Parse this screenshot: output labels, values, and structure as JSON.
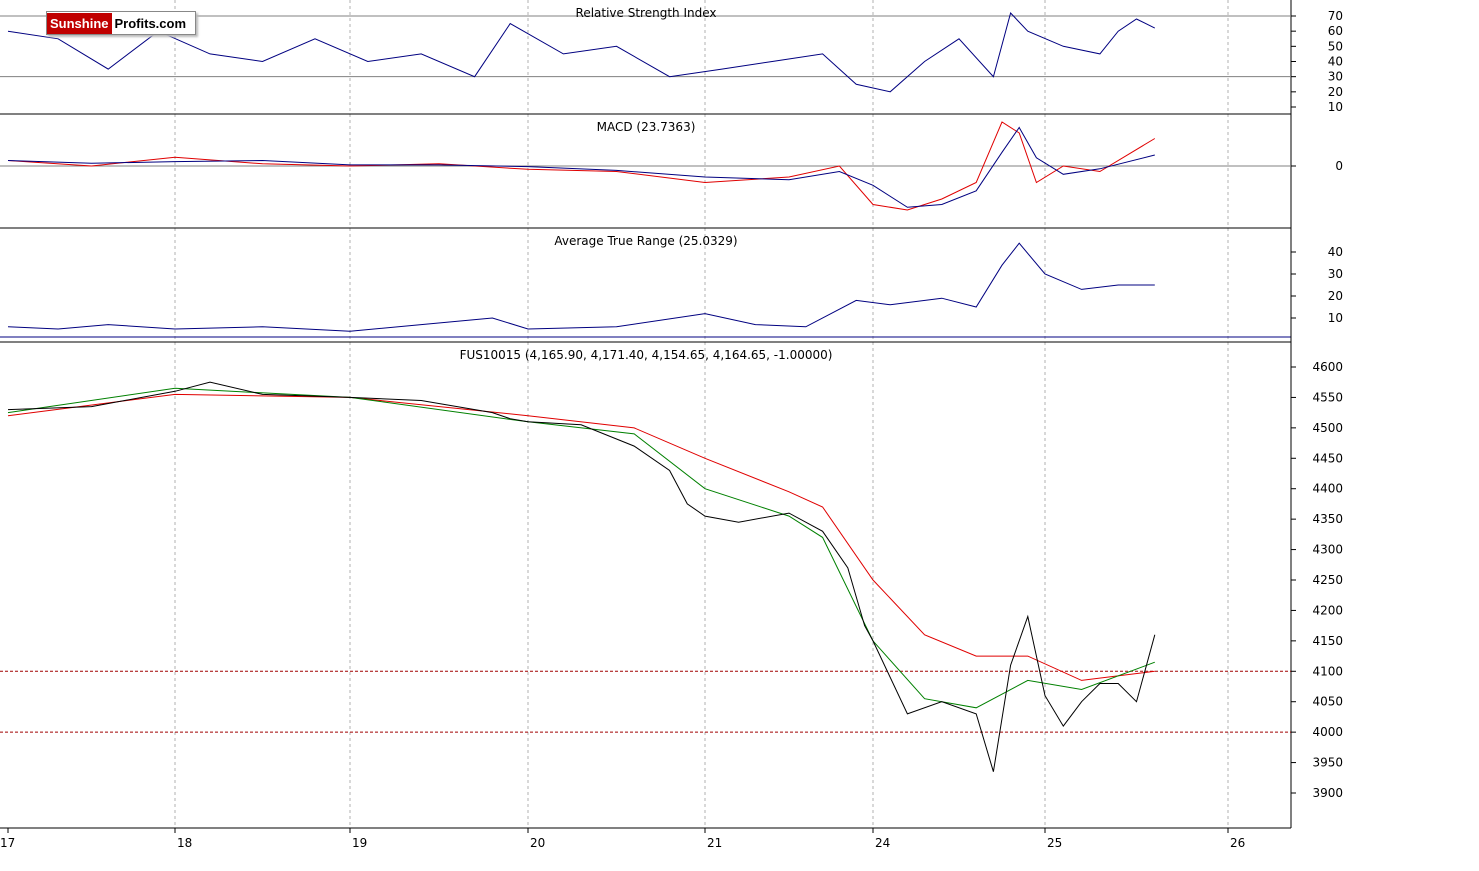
{
  "logo": {
    "part1": "Sunshine",
    "part2": "Profits.com"
  },
  "colors": {
    "price": "#000000",
    "ma_short": "#008000",
    "ma_long": "#e00000",
    "indicator": "#000080",
    "hline": "#808080",
    "support": "#a00000",
    "grid": "#b0b0b0"
  },
  "panels": {
    "rsi": {
      "title": "Relative Strength Index",
      "ticks": [
        70,
        60,
        50,
        40,
        30,
        20,
        10
      ],
      "levels": [
        70,
        30
      ]
    },
    "macd": {
      "title": "MACD (23.7363)",
      "ticks": [
        "0"
      ]
    },
    "atr": {
      "title": "Average True Range (25.0329)",
      "ticks": [
        40,
        30,
        20,
        10
      ]
    },
    "price": {
      "title": "FUS10015 (4,165.90, 4,171.40, 4,154.65, 4,164.65, -1.00000)",
      "ticks": [
        4600,
        4550,
        4500,
        4450,
        4400,
        4350,
        4300,
        4250,
        4200,
        4150,
        4100,
        4050,
        4000,
        3950,
        3900
      ],
      "support_levels": [
        4100,
        4000
      ]
    }
  },
  "x_axis": {
    "labels": [
      "17",
      "18",
      "19",
      "20",
      "21",
      "24",
      "25",
      "26"
    ]
  },
  "chart_data": {
    "type": "line",
    "x_unit": "trading session (date labels on axis)",
    "price_series": {
      "name": "FUS10015",
      "x": [
        17.0,
        17.5,
        18.0,
        18.2,
        18.5,
        19.0,
        19.4,
        19.8,
        19.9,
        20.0,
        20.3,
        20.6,
        20.8,
        20.9,
        21.0,
        21.2,
        21.5,
        21.7,
        21.85,
        21.95,
        22.0,
        22.2,
        22.4,
        22.6,
        22.7,
        22.8,
        22.9,
        23.0,
        23.1,
        23.2,
        23.3,
        23.4,
        23.5,
        23.6
      ],
      "y": [
        4530,
        4535,
        4560,
        4575,
        4555,
        4550,
        4545,
        4525,
        4515,
        4510,
        4505,
        4470,
        4430,
        4375,
        4355,
        4345,
        4360,
        4330,
        4270,
        4175,
        4150,
        4030,
        4050,
        4030,
        3935,
        4110,
        4190,
        4060,
        4010,
        4050,
        4080,
        4080,
        4050,
        4160
      ],
      "last": {
        "open": 4165.9,
        "high": 4171.4,
        "low": 4154.65,
        "close": 4164.65,
        "change": -1.0
      }
    },
    "ma_short": {
      "x": [
        17.0,
        18.0,
        19.0,
        20.0,
        20.6,
        21.0,
        21.5,
        21.7,
        22.0,
        22.3,
        22.6,
        22.9,
        23.2,
        23.6
      ],
      "y": [
        4525,
        4565,
        4550,
        4510,
        4490,
        4400,
        4355,
        4320,
        4150,
        4055,
        4040,
        4085,
        4070,
        4115
      ]
    },
    "ma_long": {
      "x": [
        17.0,
        18.0,
        19.0,
        20.0,
        20.6,
        21.0,
        21.5,
        21.7,
        22.0,
        22.3,
        22.6,
        22.9,
        23.2,
        23.6
      ],
      "y": [
        4520,
        4555,
        4550,
        4520,
        4500,
        4450,
        4395,
        4370,
        4250,
        4160,
        4125,
        4125,
        4085,
        4100
      ]
    },
    "rsi": {
      "name": "Relative Strength Index",
      "x": [
        17.0,
        17.3,
        17.6,
        17.9,
        18.2,
        18.5,
        18.8,
        19.1,
        19.4,
        19.7,
        19.9,
        20.2,
        20.5,
        20.8,
        21.1,
        21.4,
        21.7,
        21.9,
        22.1,
        22.3,
        22.5,
        22.7,
        22.8,
        22.9,
        23.1,
        23.3,
        23.4,
        23.5,
        23.6
      ],
      "y": [
        60,
        55,
        35,
        60,
        45,
        40,
        55,
        40,
        45,
        30,
        65,
        45,
        50,
        30,
        35,
        40,
        45,
        25,
        20,
        40,
        55,
        30,
        72,
        60,
        50,
        45,
        60,
        68,
        62
      ]
    },
    "macd": {
      "name": "MACD",
      "value": 23.7363,
      "x": [
        17.0,
        17.5,
        18.0,
        18.5,
        19.0,
        19.5,
        20.0,
        20.5,
        21.0,
        21.5,
        21.8,
        22.0,
        22.2,
        22.4,
        22.6,
        22.75,
        22.85,
        22.95,
        23.1,
        23.3,
        23.6
      ],
      "y": [
        5,
        0,
        8,
        2,
        0,
        2,
        -3,
        -5,
        -15,
        -10,
        0,
        -35,
        -40,
        -30,
        -15,
        40,
        30,
        -15,
        0,
        -5,
        25
      ]
    },
    "atr": {
      "name": "Average True Range",
      "value": 25.0329,
      "x": [
        17.0,
        17.3,
        17.6,
        18.0,
        18.5,
        19.0,
        19.4,
        19.8,
        20.0,
        20.5,
        21.0,
        21.3,
        21.6,
        21.9,
        22.1,
        22.4,
        22.6,
        22.75,
        22.85,
        23.0,
        23.2,
        23.4,
        23.6
      ],
      "y": [
        6,
        5,
        7,
        5,
        6,
        4,
        7,
        10,
        5,
        6,
        12,
        7,
        6,
        18,
        16,
        19,
        15,
        34,
        44,
        30,
        23,
        25,
        25
      ]
    }
  }
}
